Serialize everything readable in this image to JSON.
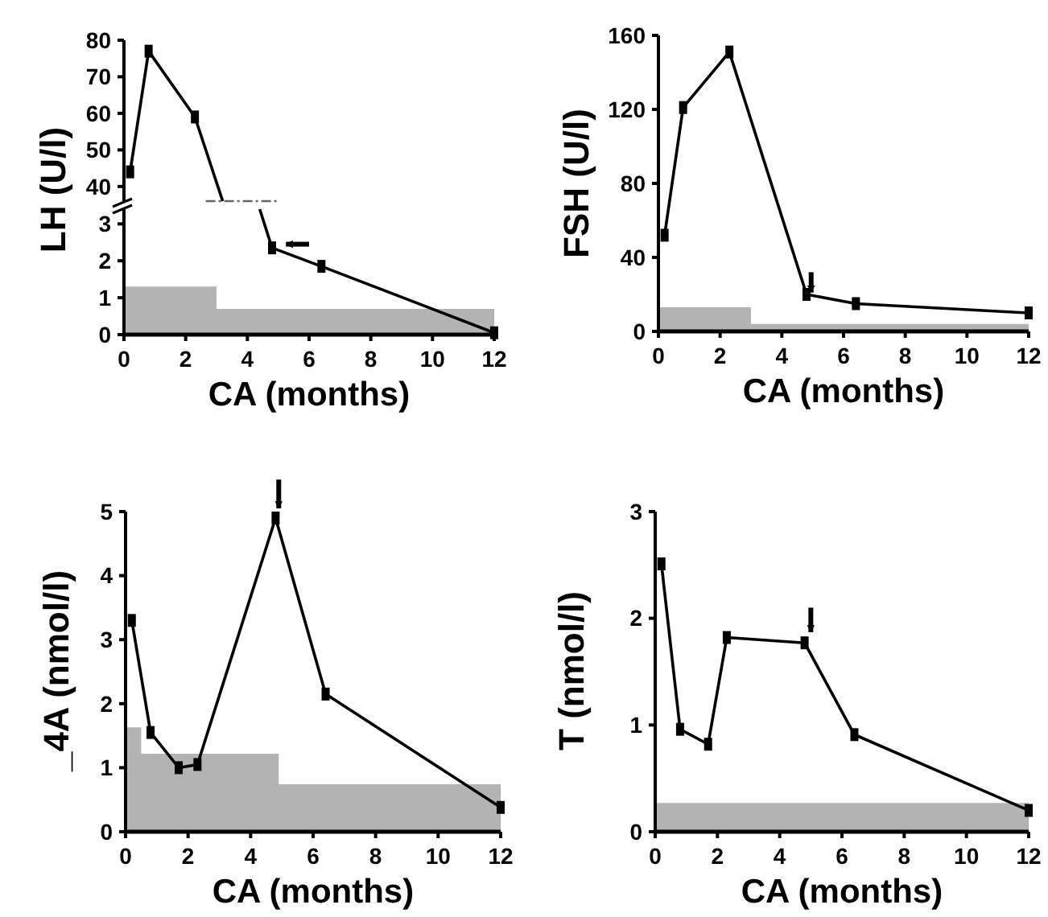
{
  "chart_data": [
    {
      "type": "line",
      "xlim": [
        0,
        12
      ],
      "ylim": [
        36,
        80
      ],
      "yticks": [
        40,
        50,
        60,
        70,
        80
      ],
      "tick_labels": "y",
      "grid": false,
      "series": [
        {
          "color": "#000000",
          "marker": "square",
          "x": [
            0.2,
            0.8,
            2.3
          ],
          "values": [
            44,
            77,
            59
          ]
        },
        {
          "color": "#000000",
          "x": [
            2.3,
            3.2
          ],
          "values": [
            59,
            36
          ]
        }
      ]
    },
    {
      "type": "line",
      "xlim": [
        0,
        12
      ],
      "xticks": [
        0,
        2,
        4,
        6,
        8,
        10,
        12
      ],
      "ylim": [
        0,
        3.4
      ],
      "yticks": [
        0,
        1,
        2,
        3
      ],
      "xlabel": "CA (months)",
      "ylabel": "LH (U/l)",
      "grid": false,
      "series": [
        {
          "type": "area",
          "color": "#b3b3b3",
          "x": [
            0,
            3,
            3,
            12
          ],
          "values": [
            1.3,
            1.3,
            0.7,
            0.7
          ]
        },
        {
          "color": "#000000",
          "x": [
            4.4,
            4.8
          ],
          "values": [
            3.4,
            2.35
          ]
        },
        {
          "color": "#000000",
          "marker": "square",
          "x": [
            4.8,
            6.4,
            12
          ],
          "values": [
            2.35,
            1.85,
            0.05
          ]
        }
      ]
    },
    {
      "type": "line",
      "xlim": [
        0,
        12
      ],
      "xticks": [
        0,
        2,
        4,
        6,
        8,
        10,
        12
      ],
      "ylim": [
        0,
        160
      ],
      "yticks": [
        0,
        40,
        80,
        120,
        160
      ],
      "xlabel": "CA (months)",
      "ylabel": "FSH (U/l)",
      "grid": false,
      "series": [
        {
          "type": "area",
          "color": "#b3b3b3",
          "x": [
            0,
            3,
            3,
            12
          ],
          "values": [
            13,
            13,
            4,
            4
          ]
        },
        {
          "color": "#000000",
          "marker": "square",
          "x": [
            0.2,
            0.8,
            2.3,
            4.8,
            6.4,
            12
          ],
          "values": [
            52,
            121,
            151,
            20,
            15,
            10
          ]
        }
      ]
    },
    {
      "type": "line",
      "xlim": [
        0,
        12
      ],
      "xticks": [
        0,
        2,
        4,
        6,
        8,
        10,
        12
      ],
      "ylim": [
        0,
        5
      ],
      "yticks": [
        0,
        1,
        2,
        3,
        4,
        5
      ],
      "xlabel": "CA (months)",
      "ylabel": "_4A (nmol/l)",
      "grid": false,
      "series": [
        {
          "type": "area",
          "color": "#b3b3b3",
          "x": [
            0,
            0.5,
            0.5,
            4.9,
            4.9,
            12
          ],
          "values": [
            1.63,
            1.63,
            1.22,
            1.22,
            0.74,
            0.74
          ]
        },
        {
          "color": "#000000",
          "marker": "square",
          "x": [
            0.2,
            0.8,
            1.7,
            2.3,
            4.8,
            6.4,
            12
          ],
          "values": [
            3.3,
            1.55,
            1.0,
            1.05,
            4.9,
            2.15,
            0.38
          ]
        }
      ]
    },
    {
      "type": "line",
      "xlim": [
        0,
        12
      ],
      "xticks": [
        0,
        2,
        4,
        6,
        8,
        10,
        12
      ],
      "ylim": [
        0,
        3
      ],
      "yticks": [
        0,
        1,
        2,
        3
      ],
      "xlabel": "CA (months)",
      "ylabel": "T (nmol/l)",
      "grid": false,
      "series": [
        {
          "type": "area",
          "color": "#b3b3b3",
          "x": [
            0,
            12
          ],
          "values": [
            0.27,
            0.27
          ]
        },
        {
          "color": "#000000",
          "marker": "square",
          "x": [
            0.2,
            0.8,
            1.7,
            2.3,
            4.8,
            6.4,
            12
          ],
          "values": [
            2.51,
            0.96,
            0.82,
            1.82,
            1.77,
            0.91,
            0.2
          ]
        }
      ]
    }
  ]
}
